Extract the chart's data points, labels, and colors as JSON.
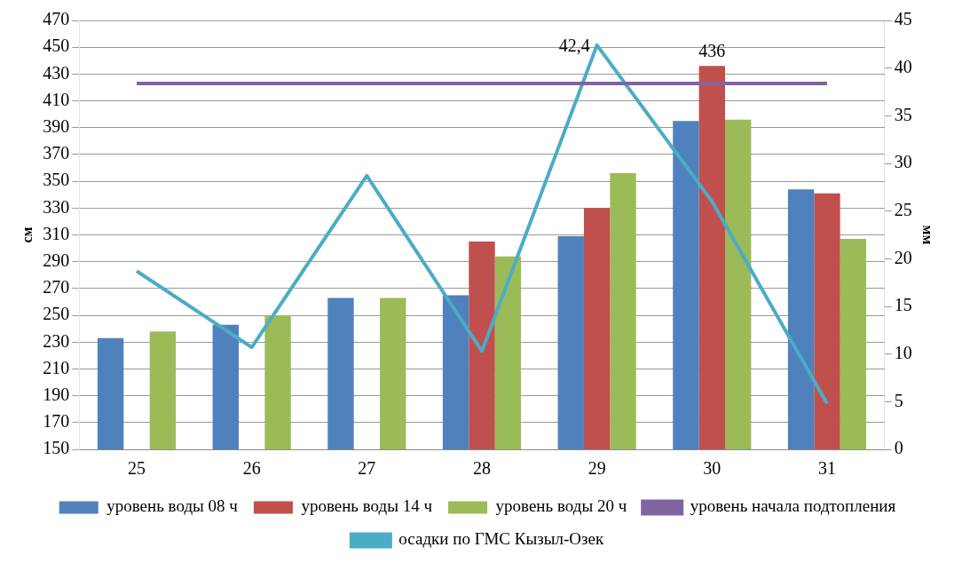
{
  "chart_data": {
    "type": "bar",
    "ylabel": "см",
    "y2label": "мм",
    "categories": [
      "25",
      "26",
      "27",
      "28",
      "29",
      "30",
      "31"
    ],
    "series": [
      {
        "name": "уровень воды 08 ч",
        "color": "#4f81bd",
        "values": [
          233,
          243,
          263,
          265,
          309,
          395,
          344
        ]
      },
      {
        "name": "уровень воды 14 ч",
        "color": "#c0504d",
        "values": [
          null,
          null,
          null,
          305,
          330,
          436,
          341
        ],
        "value_labels": [
          null,
          null,
          null,
          null,
          null,
          "436",
          null
        ]
      },
      {
        "name": "уровень воды 20 ч",
        "color": "#9bbb59",
        "values": [
          238,
          250,
          263,
          294,
          356,
          396,
          307
        ]
      },
      {
        "name": "уровень начала подтопления",
        "type": "line",
        "color": "#8064a2",
        "values": [
          423,
          423,
          423,
          423,
          423,
          423,
          423
        ]
      },
      {
        "name": "осадки по ГМС Кызыл-Озек",
        "type": "line",
        "axis": "y2",
        "color": "#4bacc6",
        "values": [
          18.7,
          10.7,
          28.7,
          10.3,
          42.4,
          26.0,
          4.8
        ],
        "value_labels": [
          null,
          null,
          null,
          null,
          "42,4",
          null,
          null
        ]
      }
    ],
    "ylim": [
      150,
      470
    ],
    "yticks": [
      150,
      170,
      190,
      210,
      230,
      250,
      270,
      290,
      310,
      330,
      350,
      370,
      390,
      410,
      430,
      450,
      470
    ],
    "y2lim": [
      0,
      45
    ],
    "y2ticks": [
      0,
      5,
      10,
      15,
      20,
      25,
      30,
      35,
      40,
      45
    ],
    "grid": "y",
    "legend": "bottom",
    "marker": "none",
    "line_style": "solid"
  }
}
